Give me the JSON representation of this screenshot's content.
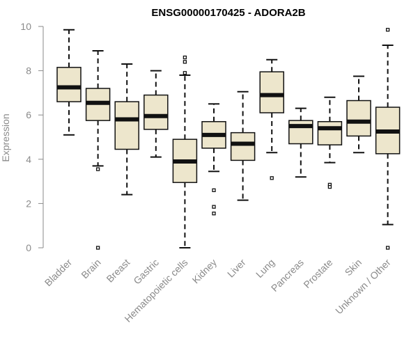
{
  "chart_data": {
    "type": "boxplot",
    "title": "ENSG00000170425 - ADORA2B",
    "xlabel": "",
    "ylabel": "Expression",
    "ylim": [
      0,
      10
    ],
    "yticks": [
      0,
      2,
      4,
      6,
      8,
      10
    ],
    "grid": false,
    "colors": {
      "box_fill": "#ede6cc",
      "box_stroke": "#111111",
      "axis": "#8a8a8a",
      "text": "#8a8a8a",
      "title": "#000000"
    },
    "categories": [
      "Bladder",
      "Brain",
      "Breast",
      "Gastric",
      "Hematopoietic cells",
      "Kidney",
      "Liver",
      "Lung",
      "Pancreas",
      "Prostate",
      "Skin",
      "Unknown / Other"
    ],
    "boxes": [
      {
        "category": "Bladder",
        "whisker_low": 5.1,
        "q1": 6.6,
        "median": 7.25,
        "q3": 8.15,
        "whisker_high": 9.85,
        "outliers": []
      },
      {
        "category": "Brain",
        "whisker_low": 3.7,
        "q1": 5.75,
        "median": 6.55,
        "q3": 7.2,
        "whisker_high": 8.9,
        "outliers": [
          3.55,
          0.0
        ]
      },
      {
        "category": "Breast",
        "whisker_low": 2.4,
        "q1": 4.45,
        "median": 5.8,
        "q3": 6.6,
        "whisker_high": 8.3,
        "outliers": []
      },
      {
        "category": "Gastric",
        "whisker_low": 4.1,
        "q1": 5.35,
        "median": 5.95,
        "q3": 6.9,
        "whisker_high": 8.0,
        "outliers": []
      },
      {
        "category": "Hematopoietic cells",
        "whisker_low": 0.0,
        "q1": 2.95,
        "median": 3.9,
        "q3": 4.9,
        "whisker_high": 7.8,
        "outliers": [
          8.6,
          8.4,
          7.9
        ]
      },
      {
        "category": "Kidney",
        "whisker_low": 3.45,
        "q1": 4.5,
        "median": 5.1,
        "q3": 5.7,
        "whisker_high": 6.5,
        "outliers": [
          2.6,
          1.85,
          1.55
        ]
      },
      {
        "category": "Liver",
        "whisker_low": 2.15,
        "q1": 3.95,
        "median": 4.7,
        "q3": 5.2,
        "whisker_high": 7.05,
        "outliers": []
      },
      {
        "category": "Lung",
        "whisker_low": 4.3,
        "q1": 6.1,
        "median": 6.9,
        "q3": 7.95,
        "whisker_high": 8.5,
        "outliers": [
          3.15
        ]
      },
      {
        "category": "Pancreas",
        "whisker_low": 3.2,
        "q1": 4.7,
        "median": 5.5,
        "q3": 5.75,
        "whisker_high": 6.3,
        "outliers": []
      },
      {
        "category": "Prostate",
        "whisker_low": 3.85,
        "q1": 4.65,
        "median": 5.4,
        "q3": 5.7,
        "whisker_high": 6.8,
        "outliers": [
          2.85,
          2.75
        ]
      },
      {
        "category": "Skin",
        "whisker_low": 4.3,
        "q1": 5.05,
        "median": 5.7,
        "q3": 6.65,
        "whisker_high": 7.75,
        "outliers": []
      },
      {
        "category": "Unknown / Other",
        "whisker_low": 1.05,
        "q1": 4.25,
        "median": 5.25,
        "q3": 6.35,
        "whisker_high": 9.15,
        "outliers": [
          9.85,
          0.0
        ]
      }
    ]
  }
}
